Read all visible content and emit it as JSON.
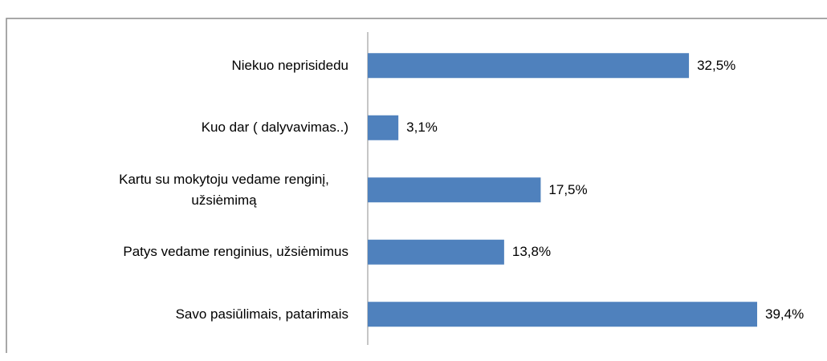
{
  "chart_data": {
    "type": "barh",
    "categories": [
      "Niekuo neprisidedu",
      "Kuo dar ( dalyvavimas..)",
      "Kartu su mokytoju vedame renginį, užsiėmimą",
      "Patys vedame renginius, užsiėmimus",
      "Savo pasiūlimais, patarimais"
    ],
    "values": [
      32.5,
      3.1,
      17.5,
      13.8,
      39.4
    ],
    "value_labels": [
      "32,5%",
      "3,1%",
      "17,5%",
      "13,8%",
      "39,4%"
    ],
    "color": "#4f81bd"
  }
}
